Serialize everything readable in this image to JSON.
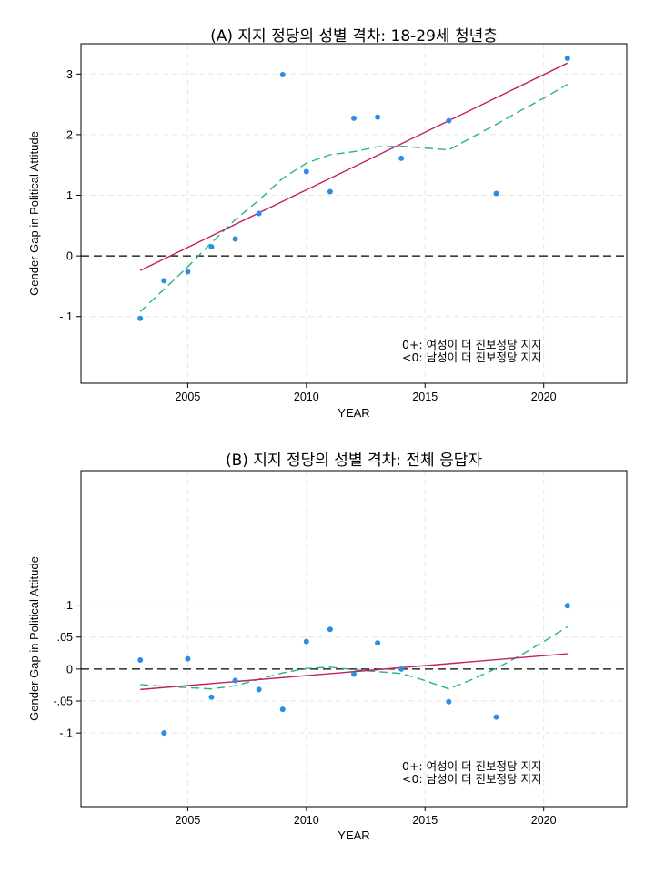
{
  "chart_data": [
    {
      "type": "scatter",
      "title": "(A) 지지 정당의 성별 격차: 18-29세 청년층",
      "xlabel": "YEAR",
      "ylabel": "Gender Gap in Political Attitude",
      "xlim": [
        2000.5,
        2023.5
      ],
      "ylim": [
        -0.21,
        0.35
      ],
      "xticks": [
        2005,
        2010,
        2015,
        2020
      ],
      "yticks": [
        -0.1,
        0,
        0.1,
        0.2,
        0.3
      ],
      "ytick_labels": [
        "-.1",
        "0",
        ".1",
        ".2",
        ".3"
      ],
      "reference_line_y": 0,
      "points": [
        {
          "x": 2003,
          "y": -0.103
        },
        {
          "x": 2004,
          "y": -0.041
        },
        {
          "x": 2005,
          "y": -0.026
        },
        {
          "x": 2006,
          "y": 0.015
        },
        {
          "x": 2007,
          "y": 0.028
        },
        {
          "x": 2008,
          "y": 0.07
        },
        {
          "x": 2009,
          "y": 0.299
        },
        {
          "x": 2010,
          "y": 0.139
        },
        {
          "x": 2011,
          "y": 0.106
        },
        {
          "x": 2012,
          "y": 0.227
        },
        {
          "x": 2013,
          "y": 0.229
        },
        {
          "x": 2014,
          "y": 0.161
        },
        {
          "x": 2016,
          "y": 0.223
        },
        {
          "x": 2018,
          "y": 0.103
        },
        {
          "x": 2021,
          "y": 0.326
        }
      ],
      "linear_fit": {
        "x": [
          2003,
          2021
        ],
        "y": [
          -0.024,
          0.318
        ]
      },
      "lowess": {
        "x": [
          2003,
          2004,
          2005,
          2006,
          2007,
          2008,
          2009,
          2010,
          2011,
          2012,
          2013,
          2014,
          2015,
          2016,
          2017,
          2018,
          2019,
          2020,
          2021
        ],
        "y": [
          -0.092,
          -0.055,
          -0.018,
          0.022,
          0.06,
          0.092,
          0.128,
          0.153,
          0.167,
          0.172,
          0.18,
          0.181,
          0.178,
          0.175,
          0.196,
          0.217,
          0.239,
          0.26,
          0.283
        ]
      },
      "annotations": [
        "0+: 여성이 더 진보정당 지지",
        "<0: 남성이 더 진보정당 지지"
      ]
    },
    {
      "type": "scatter",
      "title": "(B) 지지 정당의 성별 격차: 전체 응답자",
      "xlabel": "YEAR",
      "ylabel": "Gender Gap in Political Attitude",
      "xlim": [
        2000.5,
        2023.5
      ],
      "ylim": [
        -0.215,
        0.31
      ],
      "xticks": [
        2005,
        2010,
        2015,
        2020
      ],
      "yticks": [
        -0.1,
        -0.05,
        0,
        0.05,
        0.1
      ],
      "ytick_labels": [
        "-.1",
        "-.05",
        "0",
        ".05",
        ".1"
      ],
      "reference_line_y": 0,
      "points": [
        {
          "x": 2003,
          "y": 0.014
        },
        {
          "x": 2004,
          "y": -0.1
        },
        {
          "x": 2005,
          "y": 0.016
        },
        {
          "x": 2006,
          "y": -0.044
        },
        {
          "x": 2007,
          "y": -0.018
        },
        {
          "x": 2008,
          "y": -0.032
        },
        {
          "x": 2009,
          "y": -0.063
        },
        {
          "x": 2010,
          "y": 0.043
        },
        {
          "x": 2011,
          "y": 0.062
        },
        {
          "x": 2012,
          "y": -0.008
        },
        {
          "x": 2013,
          "y": 0.041
        },
        {
          "x": 2014,
          "y": 0.0
        },
        {
          "x": 2016,
          "y": -0.051
        },
        {
          "x": 2018,
          "y": -0.075
        },
        {
          "x": 2021,
          "y": 0.099
        }
      ],
      "linear_fit": {
        "x": [
          2003,
          2021
        ],
        "y": [
          -0.032,
          0.024
        ]
      },
      "lowess": {
        "x": [
          2003,
          2004,
          2005,
          2006,
          2007,
          2008,
          2009,
          2010,
          2011,
          2012,
          2013,
          2014,
          2015,
          2016,
          2017,
          2018,
          2019,
          2020,
          2021
        ],
        "y": [
          -0.024,
          -0.027,
          -0.029,
          -0.031,
          -0.026,
          -0.016,
          -0.006,
          0.001,
          0.003,
          -0.001,
          -0.004,
          -0.007,
          -0.018,
          -0.031,
          -0.016,
          0.001,
          0.021,
          0.043,
          0.066
        ]
      },
      "annotations": [
        "0+: 여성이 더 진보정당 지지",
        "<0: 남성이 더 진보정당 지지"
      ]
    }
  ],
  "style": {
    "point_color": "#2d8ce6",
    "fit_color": "#c0206a",
    "lowess_color": "#23b58a",
    "grid_color": "#e6e6e6"
  }
}
